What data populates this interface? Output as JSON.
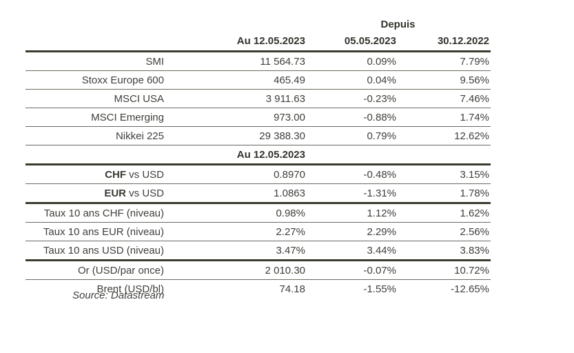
{
  "colors": {
    "thick_line": "#3b3a2f",
    "thin_line": "#6a6860",
    "text": "#3f3e3a",
    "heading_text": "#33322c",
    "background": "#ffffff"
  },
  "header": {
    "depuis_label": "Depuis",
    "current_date": "Au 12.05.2023",
    "since_date_1": "05.05.2023",
    "since_date_2": "30.12.2022"
  },
  "subheader": {
    "label": "Au 12.05.2023"
  },
  "rows": [
    {
      "label": "SMI",
      "current": "11 564.73",
      "since_1": "0.09%",
      "since_2": "7.79%"
    },
    {
      "label": "Stoxx Europe 600",
      "current": "465.49",
      "since_1": "0.04%",
      "since_2": "9.56%"
    },
    {
      "label": "MSCI USA",
      "current": "3 911.63",
      "since_1": "-0.23%",
      "since_2": "7.46%"
    },
    {
      "label": "MSCI Emerging",
      "current": "973.00",
      "since_1": "-0.88%",
      "since_2": "1.74%"
    },
    {
      "label": "Nikkei 225",
      "current": "29 388.30",
      "since_1": "0.79%",
      "since_2": "12.62%"
    },
    {
      "label_bold": "CHF",
      "label": " vs USD",
      "current": "0.8970",
      "since_1": "-0.48%",
      "since_2": "3.15%"
    },
    {
      "label_bold": "EUR",
      "label": " vs USD",
      "current": "1.0863",
      "since_1": "-1.31%",
      "since_2": "1.78%"
    },
    {
      "label": "Taux 10 ans CHF (niveau)",
      "current": "0.98%",
      "since_1": "1.12%",
      "since_2": "1.62%"
    },
    {
      "label": "Taux 10 ans EUR (niveau)",
      "current": "2.27%",
      "since_1": "2.29%",
      "since_2": "2.56%"
    },
    {
      "label": "Taux 10 ans USD (niveau)",
      "current": "3.47%",
      "since_1": "3.44%",
      "since_2": "3.83%"
    },
    {
      "label": "Or (USD/par once)",
      "current": "2 010.30",
      "since_1": "-0.07%",
      "since_2": "10.72%"
    },
    {
      "label": "Brent (USD/bl)",
      "current": "74.18",
      "since_1": "-1.55%",
      "since_2": "-12.65%"
    }
  ],
  "source_note": "Source: Datastream"
}
